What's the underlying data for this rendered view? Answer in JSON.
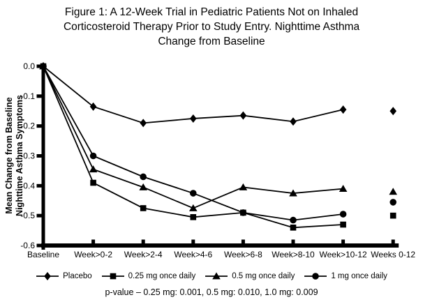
{
  "title": {
    "lines": [
      "Figure 1: A 12-Week Trial in Pediatric Patients Not on Inhaled",
      "Corticosteroid Therapy Prior to Study Entry. Nighttime Asthma",
      "Change from Baseline"
    ]
  },
  "chart_data": {
    "type": "line",
    "categories": [
      "Baseline",
      "Week>0-2",
      "Week>2-4",
      "Week>4-6",
      "Week>6-8",
      "Week>8-10",
      "Week>10-12",
      "Weeks 0-12"
    ],
    "series": [
      {
        "name": "Placebo",
        "marker": "diamond",
        "values": [
          0.0,
          -0.135,
          -0.19,
          -0.175,
          -0.165,
          -0.185,
          -0.145,
          -0.15
        ]
      },
      {
        "name": "0.25 mg once daily",
        "marker": "square",
        "values": [
          0.0,
          -0.39,
          -0.475,
          -0.505,
          -0.49,
          -0.54,
          -0.53,
          -0.5
        ]
      },
      {
        "name": "0.5 mg once daily",
        "marker": "triangle",
        "values": [
          0.0,
          -0.345,
          -0.405,
          -0.475,
          -0.405,
          -0.425,
          -0.41,
          -0.42
        ]
      },
      {
        "name": "1 mg once daily",
        "marker": "circle",
        "values": [
          0.0,
          -0.3,
          -0.37,
          -0.425,
          -0.49,
          -0.515,
          -0.495,
          -0.455
        ]
      }
    ],
    "ylabel_lines": [
      "Mean Change from Baseline",
      "Nighttime Asthma Symptoms"
    ],
    "xlabel": "",
    "ylim": [
      -0.6,
      0.0
    ],
    "ytick_step": 0.1,
    "ytick_labels": [
      "0.0",
      "-0.1",
      "-0.2",
      "-0.3",
      "-0.4",
      "-0.5",
      "-0.6"
    ],
    "grid": false,
    "legend_position": "bottom",
    "last_point_disconnected": true,
    "marker_draw_order": [
      0,
      2,
      3,
      1
    ],
    "line_color": "#000000"
  },
  "footnote": "p-value – 0.25 mg: 0.001, 0.5 mg: 0.010, 1.0 mg: 0.009"
}
